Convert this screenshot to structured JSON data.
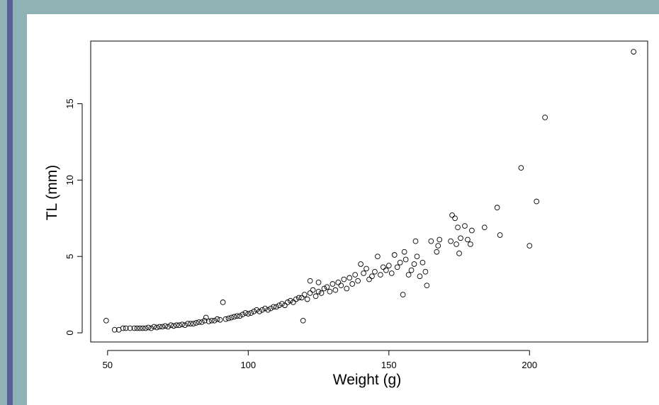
{
  "theme": {
    "background": "#8fb3b5",
    "accent_bar": "#5a5f98",
    "panel": "#ffffff"
  },
  "chart_data": {
    "type": "scatter",
    "title": "",
    "xlabel": "Weight (g)",
    "ylabel": "TL (mm)",
    "xlim": [
      44,
      242
    ],
    "ylim": [
      -0.6,
      19.1
    ],
    "x_ticks": [
      50,
      100,
      150,
      200
    ],
    "y_ticks": [
      0,
      5,
      10,
      15
    ],
    "grid": false,
    "legend": "none",
    "marker": "open-circle",
    "points": [
      [
        49.5,
        0.8
      ],
      [
        52.5,
        0.2
      ],
      [
        54,
        0.2
      ],
      [
        55.5,
        0.3
      ],
      [
        56.5,
        0.3
      ],
      [
        58,
        0.3
      ],
      [
        59.5,
        0.3
      ],
      [
        60.5,
        0.3
      ],
      [
        61.5,
        0.3
      ],
      [
        62.5,
        0.3
      ],
      [
        63.5,
        0.3
      ],
      [
        64.5,
        0.35
      ],
      [
        65.5,
        0.3
      ],
      [
        66.5,
        0.4
      ],
      [
        67.5,
        0.35
      ],
      [
        68.5,
        0.4
      ],
      [
        69.5,
        0.4
      ],
      [
        70.5,
        0.45
      ],
      [
        71.5,
        0.4
      ],
      [
        72.5,
        0.5
      ],
      [
        73.5,
        0.45
      ],
      [
        74.5,
        0.5
      ],
      [
        75.5,
        0.5
      ],
      [
        76.5,
        0.55
      ],
      [
        77.5,
        0.5
      ],
      [
        78.5,
        0.6
      ],
      [
        79.5,
        0.6
      ],
      [
        80.5,
        0.6
      ],
      [
        81.5,
        0.65
      ],
      [
        82.5,
        0.7
      ],
      [
        83.5,
        0.7
      ],
      [
        84.5,
        0.8
      ],
      [
        85,
        1.0
      ],
      [
        86,
        0.75
      ],
      [
        87,
        0.8
      ],
      [
        88,
        0.8
      ],
      [
        89,
        0.9
      ],
      [
        90,
        0.85
      ],
      [
        91,
        2.0
      ],
      [
        92,
        0.9
      ],
      [
        93,
        0.95
      ],
      [
        94,
        1.0
      ],
      [
        95,
        1.05
      ],
      [
        96,
        1.1
      ],
      [
        97,
        1.1
      ],
      [
        98,
        1.2
      ],
      [
        99,
        1.3
      ],
      [
        100,
        1.25
      ],
      [
        101,
        1.3
      ],
      [
        102,
        1.4
      ],
      [
        103,
        1.5
      ],
      [
        104,
        1.4
      ],
      [
        105,
        1.5
      ],
      [
        106,
        1.6
      ],
      [
        107,
        1.5
      ],
      [
        108,
        1.6
      ],
      [
        109,
        1.7
      ],
      [
        110,
        1.7
      ],
      [
        111,
        1.8
      ],
      [
        112,
        1.9
      ],
      [
        113,
        1.8
      ],
      [
        114,
        2.0
      ],
      [
        115,
        2.1
      ],
      [
        116,
        2.0
      ],
      [
        117,
        2.2
      ],
      [
        118,
        2.3
      ],
      [
        119,
        2.3
      ],
      [
        119.5,
        0.8
      ],
      [
        120,
        2.5
      ],
      [
        121,
        2.2
      ],
      [
        122,
        2.6
      ],
      [
        122,
        3.4
      ],
      [
        123,
        2.8
      ],
      [
        124,
        2.4
      ],
      [
        125,
        3.3
      ],
      [
        125,
        2.7
      ],
      [
        126,
        2.6
      ],
      [
        127,
        2.9
      ],
      [
        128,
        3.0
      ],
      [
        129,
        2.7
      ],
      [
        130,
        3.2
      ],
      [
        131,
        2.8
      ],
      [
        132,
        3.3
      ],
      [
        133,
        3.1
      ],
      [
        134,
        3.5
      ],
      [
        135,
        2.9
      ],
      [
        136,
        3.6
      ],
      [
        137,
        3.2
      ],
      [
        138,
        3.8
      ],
      [
        139,
        3.4
      ],
      [
        140,
        4.5
      ],
      [
        141,
        3.9
      ],
      [
        142,
        4.2
      ],
      [
        143,
        3.5
      ],
      [
        144,
        3.7
      ],
      [
        145,
        4.0
      ],
      [
        146,
        5.0
      ],
      [
        147,
        3.8
      ],
      [
        148,
        4.3
      ],
      [
        149,
        4.1
      ],
      [
        150,
        4.4
      ],
      [
        151,
        3.9
      ],
      [
        152,
        5.1
      ],
      [
        153,
        4.3
      ],
      [
        154,
        4.6
      ],
      [
        155,
        2.5
      ],
      [
        155.5,
        5.3
      ],
      [
        156,
        4.8
      ],
      [
        157,
        3.8
      ],
      [
        158,
        4.1
      ],
      [
        159,
        4.5
      ],
      [
        159.5,
        6.0
      ],
      [
        160,
        5.0
      ],
      [
        161,
        3.7
      ],
      [
        162,
        4.6
      ],
      [
        163,
        4.0
      ],
      [
        163.5,
        3.1
      ],
      [
        165,
        6.0
      ],
      [
        167,
        5.3
      ],
      [
        167.5,
        5.7
      ],
      [
        168,
        6.1
      ],
      [
        172,
        6.0
      ],
      [
        172.5,
        7.7
      ],
      [
        173.5,
        7.5
      ],
      [
        174,
        5.8
      ],
      [
        174.5,
        6.9
      ],
      [
        175,
        5.2
      ],
      [
        175.5,
        6.2
      ],
      [
        177,
        7.0
      ],
      [
        178,
        6.1
      ],
      [
        179,
        5.8
      ],
      [
        179.5,
        6.7
      ],
      [
        184,
        6.9
      ],
      [
        188.5,
        8.2
      ],
      [
        189.5,
        6.4
      ],
      [
        197,
        10.8
      ],
      [
        200,
        5.7
      ],
      [
        202.5,
        8.6
      ],
      [
        205.5,
        14.1
      ],
      [
        237,
        18.4
      ]
    ]
  }
}
